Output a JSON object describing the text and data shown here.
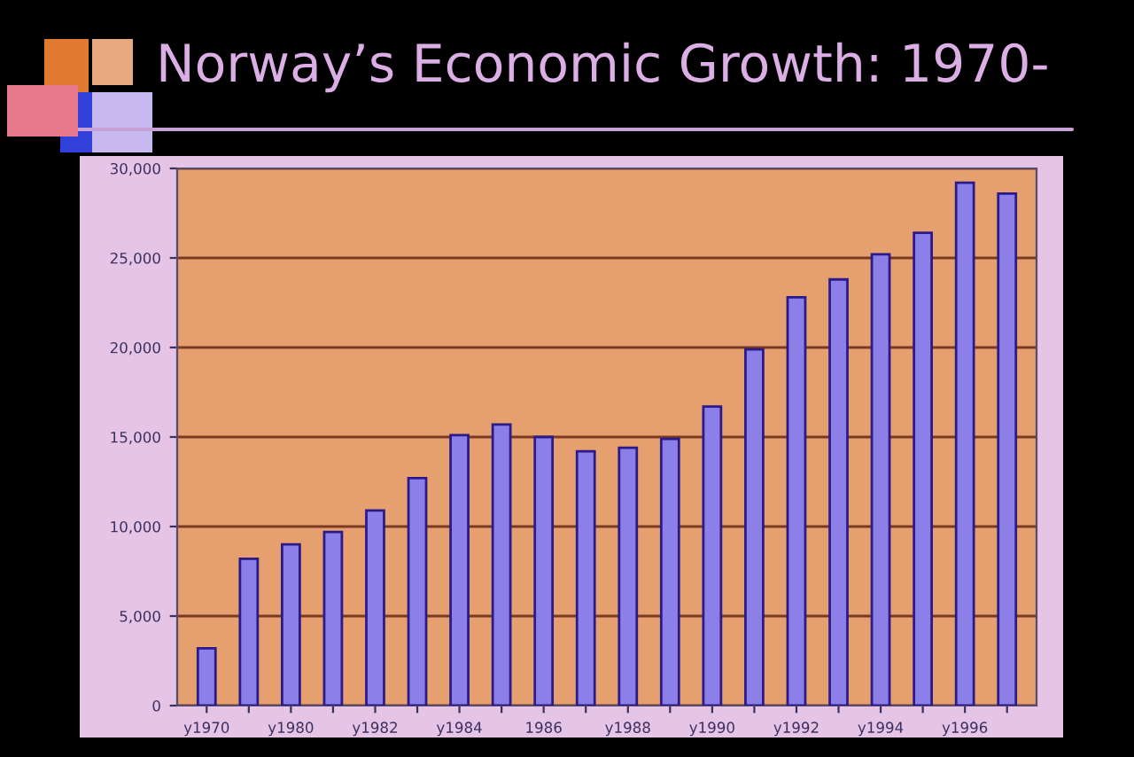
{
  "chart_data": {
    "type": "bar",
    "title": "Norway’s Economic Growth: 1970-",
    "categories": [
      "y1970",
      null,
      "y1980",
      null,
      "y1982",
      null,
      "y1984",
      null,
      "1986",
      null,
      "y1988",
      null,
      "y1990",
      null,
      "y1992",
      null,
      "y1994",
      null,
      "y1996",
      null
    ],
    "values": [
      3200,
      8200,
      9000,
      9700,
      10900,
      12700,
      15100,
      15700,
      15000,
      14200,
      14400,
      14900,
      16700,
      19900,
      22800,
      23800,
      25200,
      26400,
      29200,
      28600
    ],
    "color": "#8c80e8",
    "ylim": [
      0,
      30000
    ],
    "yticks": [
      0,
      {
        "value": 5000,
        "label": "5,000"
      },
      {
        "value": 10000,
        "label": "10,000"
      },
      {
        "value": 15000,
        "label": "15,000"
      },
      {
        "value": 20000,
        "label": "20,000"
      },
      {
        "value": 25000,
        "label": "25,000"
      },
      {
        "value": 30000,
        "label": "30,000"
      }
    ],
    "grid": "y"
  }
}
